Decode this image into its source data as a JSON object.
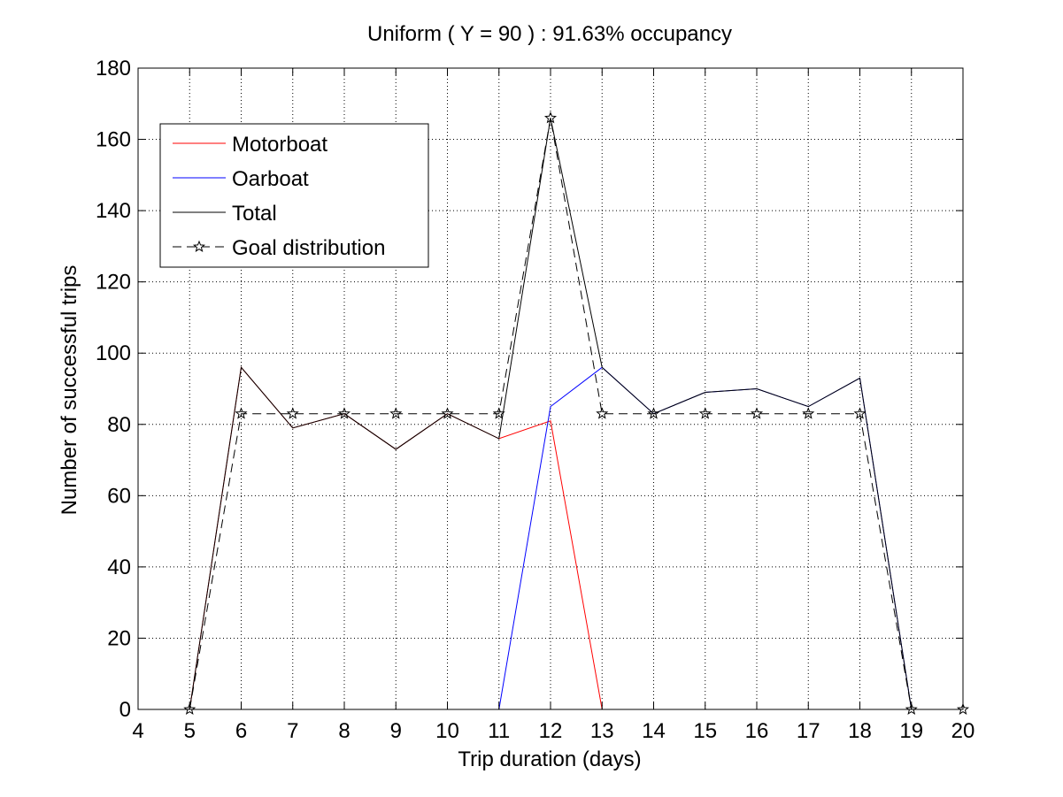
{
  "chart_data": {
    "type": "line",
    "title": "Uniform ( Y = 90 ) : 91.63% occupancy",
    "xlabel": "Trip duration (days)",
    "ylabel": "Number of successful trips",
    "xlim": [
      4,
      20
    ],
    "ylim": [
      0,
      180
    ],
    "xticks": [
      4,
      5,
      6,
      7,
      8,
      9,
      10,
      11,
      12,
      13,
      14,
      15,
      16,
      17,
      18,
      19,
      20
    ],
    "yticks": [
      0,
      20,
      40,
      60,
      80,
      100,
      120,
      140,
      160,
      180
    ],
    "grid": true,
    "legend_position": "top-left",
    "series": [
      {
        "name": "Motorboat",
        "color": "#ff0000",
        "style": "solid",
        "marker": "none",
        "x": [
          5,
          6,
          7,
          8,
          9,
          10,
          11,
          12,
          13,
          14,
          15,
          16,
          17,
          18,
          19
        ],
        "y": [
          0,
          96,
          79,
          83,
          73,
          83,
          76,
          81,
          0,
          0,
          0,
          0,
          0,
          0,
          0
        ]
      },
      {
        "name": "Oarboat",
        "color": "#0000ff",
        "style": "solid",
        "marker": "none",
        "x": [
          5,
          6,
          7,
          8,
          9,
          10,
          11,
          12,
          13,
          14,
          15,
          16,
          17,
          18,
          19
        ],
        "y": [
          0,
          0,
          0,
          0,
          0,
          0,
          0,
          85,
          96,
          83,
          89,
          90,
          85,
          93,
          0
        ]
      },
      {
        "name": "Total",
        "color": "#000000",
        "style": "solid",
        "marker": "none",
        "x": [
          5,
          6,
          7,
          8,
          9,
          10,
          11,
          12,
          13,
          14,
          15,
          16,
          17,
          18,
          19
        ],
        "y": [
          0,
          96,
          79,
          83,
          73,
          83,
          76,
          166,
          96,
          83,
          89,
          90,
          85,
          93,
          0
        ]
      },
      {
        "name": "Goal distribution",
        "color": "#000000",
        "style": "dashed",
        "marker": "star",
        "x": [
          5,
          6,
          7,
          8,
          9,
          10,
          11,
          12,
          13,
          14,
          15,
          16,
          17,
          18,
          19,
          20
        ],
        "y": [
          0,
          83,
          83,
          83,
          83,
          83,
          83,
          166,
          83,
          83,
          83,
          83,
          83,
          83,
          0,
          0
        ]
      }
    ]
  }
}
